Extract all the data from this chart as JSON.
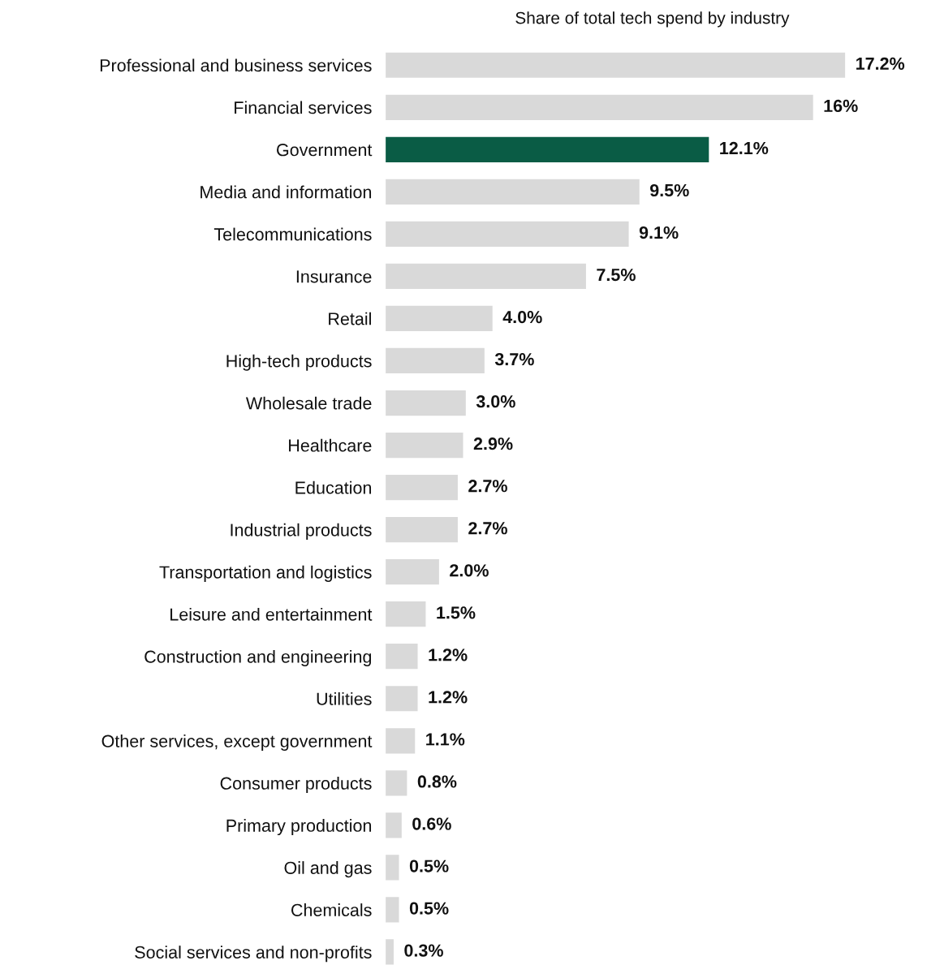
{
  "chart_data": {
    "type": "bar",
    "orientation": "horizontal",
    "title": "Share of total tech spend by industry",
    "categories": [
      "Professional and business services",
      "Financial services",
      "Government",
      "Media and information",
      "Telecommunications",
      "Insurance",
      "Retail",
      "High-tech products",
      "Wholesale trade",
      "Healthcare",
      "Education",
      "Industrial products",
      "Transportation and logistics",
      "Leisure and entertainment",
      "Construction and engineering",
      "Utilities",
      "Other services, except government",
      "Consumer products",
      "Primary production",
      "Oil and gas",
      "Chemicals",
      "Social services and non-profits"
    ],
    "values": [
      17.2,
      16,
      12.1,
      9.5,
      9.1,
      7.5,
      4.0,
      3.7,
      3.0,
      2.9,
      2.7,
      2.7,
      2.0,
      1.5,
      1.2,
      1.2,
      1.1,
      0.8,
      0.6,
      0.5,
      0.5,
      0.3
    ],
    "value_labels": [
      "17.2%",
      "16%",
      "12.1%",
      "9.5%",
      "9.1%",
      "7.5%",
      "4.0%",
      "3.7%",
      "3.0%",
      "2.9%",
      "2.7%",
      "2.7%",
      "2.0%",
      "1.5%",
      "1.2%",
      "1.2%",
      "1.1%",
      "0.8%",
      "0.6%",
      "0.5%",
      "0.5%",
      "0.3%"
    ],
    "colors": [
      "#d9d9d9",
      "#d9d9d9",
      "#0a5c45",
      "#d9d9d9",
      "#d9d9d9",
      "#d9d9d9",
      "#d9d9d9",
      "#d9d9d9",
      "#d9d9d9",
      "#d9d9d9",
      "#d9d9d9",
      "#d9d9d9",
      "#d9d9d9",
      "#d9d9d9",
      "#d9d9d9",
      "#d9d9d9",
      "#d9d9d9",
      "#d9d9d9",
      "#d9d9d9",
      "#d9d9d9",
      "#d9d9d9",
      "#d9d9d9"
    ],
    "grid": false,
    "legend": false
  }
}
